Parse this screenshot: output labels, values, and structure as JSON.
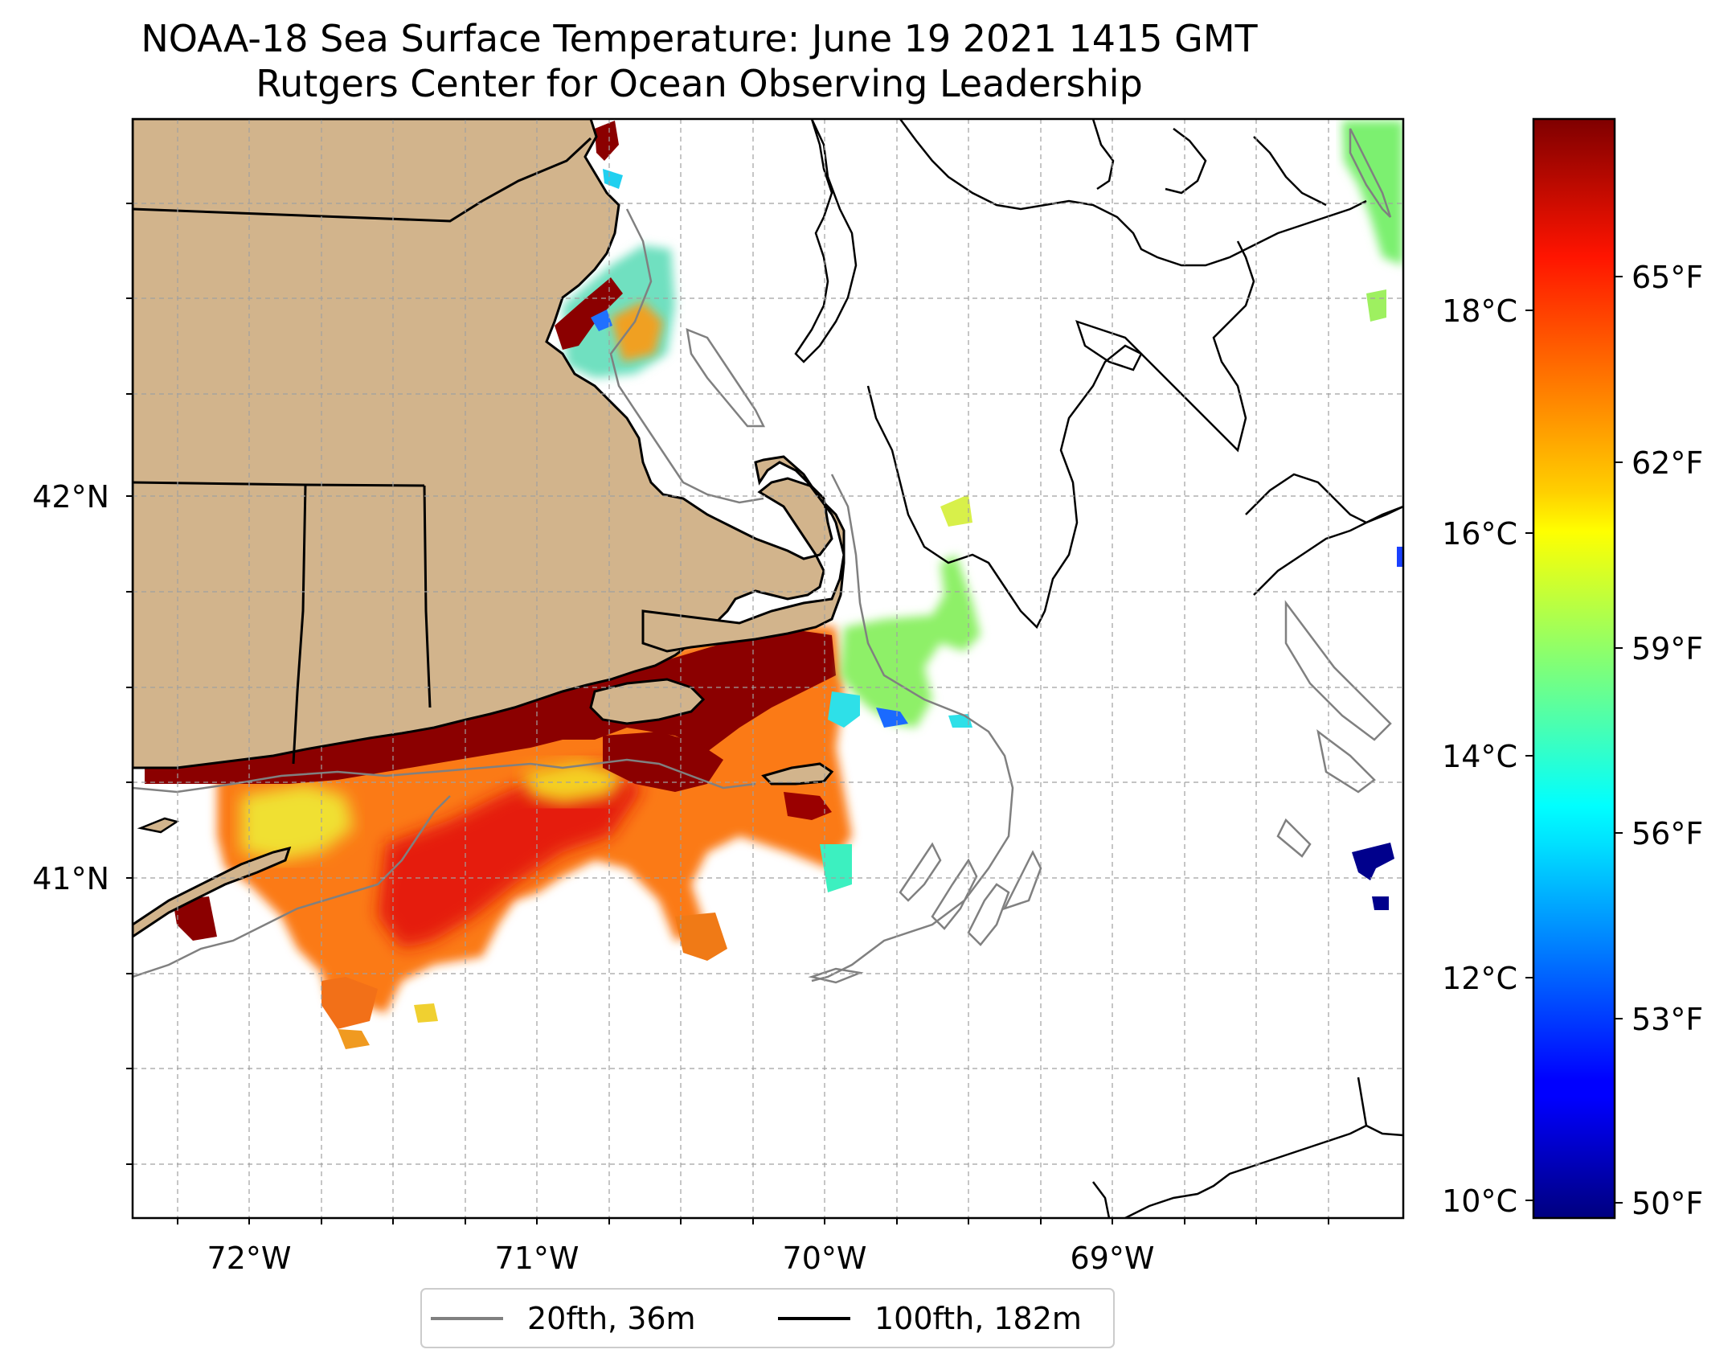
{
  "title": "NOAA-18 Sea Surface Temperature: June 19 2021 1415 GMT",
  "subtitle": "Rutgers Center for Ocean Observing Leadership",
  "map": {
    "region": "Southern New England / Cape Cod / Gulf of Maine",
    "lon_range": [
      -72.4,
      -68.0
    ],
    "lat_range": [
      40.1,
      42.95
    ],
    "x_ticks": [
      "72°W",
      "71°W",
      "70°W",
      "69°W"
    ],
    "y_ticks": [
      "42°N",
      "41°N"
    ],
    "gridlines": true,
    "land_color": "#d2b48c",
    "colors": {
      "hot": "#800000",
      "red": "#e81c0c",
      "orange": "#fb8b14",
      "yellow": "#f5e61e",
      "green": "#82ff70",
      "cyan": "#1ee6f0",
      "blue": "#0a2cff",
      "navy": "#00008c"
    }
  },
  "colorbar": {
    "colormap": "jet",
    "celsius_labels": [
      "10°C",
      "12°C",
      "14°C",
      "16°C",
      "18°C"
    ],
    "fahrenheit_labels": [
      "50°F",
      "53°F",
      "56°F",
      "59°F",
      "62°F",
      "65°F"
    ]
  },
  "legend": {
    "items": [
      {
        "label": "20fth, 36m",
        "color": "#808080"
      },
      {
        "label": "100fth, 182m",
        "color": "#000000"
      }
    ],
    "placement": "bottom-center"
  }
}
